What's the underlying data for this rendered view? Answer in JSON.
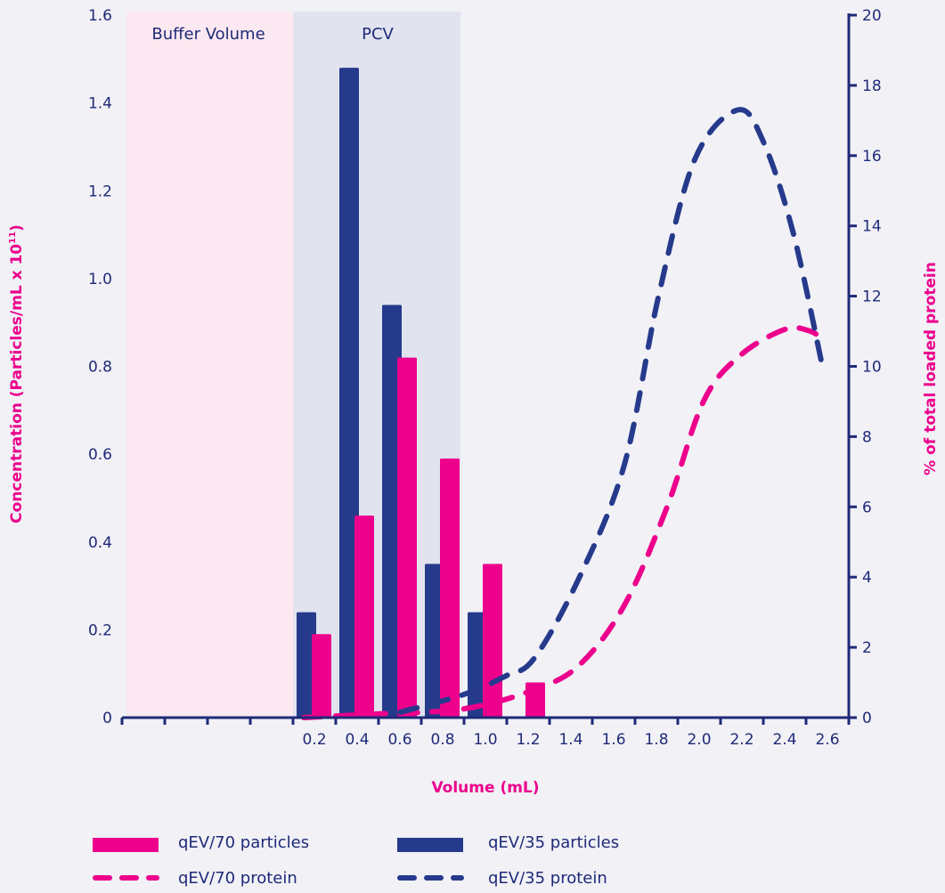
{
  "colors": {
    "pink": "#ec008c",
    "navy": "#263a8c",
    "buffer_fill": "#fce8f1",
    "pcv_fill": "#e1e3ef",
    "axis": "#1f2a78"
  },
  "chart_data": {
    "type": "bar+line",
    "xlabel": "Volume (mL)",
    "ylabel": "Concentration (Particles/mL x 10",
    "ylabel_superscript": "11",
    "ylabel_close": ")",
    "y2label": "% of total loaded protein",
    "ylim": [
      0,
      1.6
    ],
    "y2lim": [
      0,
      20
    ],
    "yticks": [
      "0",
      "0.2",
      "0.4",
      "0.6",
      "0.8",
      "1.0",
      "1.2",
      "1.4",
      "1.6"
    ],
    "y2ticks": [
      "0",
      "2",
      "4",
      "6",
      "8",
      "10",
      "12",
      "14",
      "16",
      "18",
      "20"
    ],
    "categories": [
      "0.2",
      "0.4",
      "0.6",
      "0.8",
      "1.0",
      "1.2",
      "1.4",
      "1.6",
      "1.8",
      "2.0",
      "2.2",
      "2.4",
      "2.6"
    ],
    "regions": [
      {
        "label": "Buffer Volume"
      },
      {
        "label": "PCV"
      }
    ],
    "bar_series": [
      {
        "name": "qEV/35 particles",
        "color": "#263a8c",
        "values": [
          0.24,
          1.48,
          0.94,
          0.35,
          0.24,
          null,
          null,
          null,
          null,
          null,
          null,
          null,
          null
        ]
      },
      {
        "name": "qEV/70 particles",
        "color": "#ec008c",
        "values": [
          0.19,
          0.46,
          0.82,
          0.59,
          0.35,
          0.08,
          null,
          null,
          null,
          null,
          null,
          null,
          null
        ]
      }
    ],
    "line_series": [
      {
        "name": "qEV/70 protein",
        "color": "#ec008c",
        "axis": "right",
        "x": [
          0.15,
          0.48,
          0.9,
          1.23,
          1.44,
          1.65,
          1.85,
          2.02,
          2.19,
          2.4,
          2.52,
          2.59
        ],
        "y": [
          0.0,
          0.1,
          0.25,
          0.8,
          1.5,
          3.2,
          6.0,
          9.0,
          10.3,
          11.05,
          11.0,
          10.7
        ]
      },
      {
        "name": "qEV/35 protein",
        "color": "#263a8c",
        "axis": "right",
        "x": [
          0.6,
          0.9,
          1.1,
          1.23,
          1.44,
          1.65,
          1.81,
          1.98,
          2.18,
          2.3,
          2.44,
          2.58
        ],
        "y": [
          0.15,
          0.66,
          1.2,
          1.7,
          4.0,
          7.2,
          12.0,
          15.9,
          17.3,
          16.4,
          13.8,
          9.9
        ]
      }
    ],
    "legend": [
      {
        "label": "qEV/70 particles",
        "style": "bar",
        "color": "#ec008c"
      },
      {
        "label": "qEV/35 particles",
        "style": "bar",
        "color": "#263a8c"
      },
      {
        "label": "qEV/70 protein",
        "style": "dashed",
        "color": "#ec008c"
      },
      {
        "label": "qEV/35 protein",
        "style": "dashed",
        "color": "#263a8c"
      }
    ],
    "legend_position": "bottom"
  }
}
